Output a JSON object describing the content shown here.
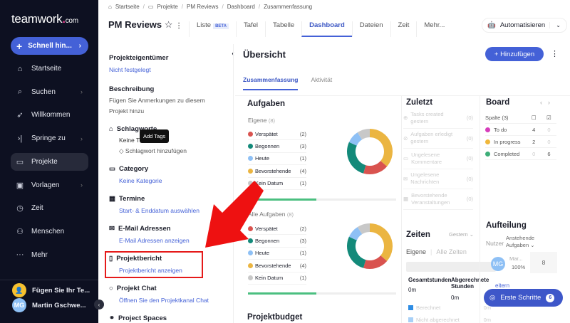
{
  "sidebar": {
    "logo": "teamwork",
    "logo_suffix": ".com",
    "quick_add": "Schnell hin...",
    "items": [
      {
        "label": "Startseite",
        "icon": "home-icon"
      },
      {
        "label": "Suchen",
        "icon": "search-icon",
        "chevron": true
      },
      {
        "label": "Willkommen",
        "icon": "rocket-icon"
      },
      {
        "label": "Springe zu",
        "icon": "jump-icon",
        "chevron": true
      },
      {
        "label": "Projekte",
        "icon": "folder-icon",
        "active": true
      },
      {
        "label": "Vorlagen",
        "icon": "templates-icon",
        "chevron": true
      },
      {
        "label": "Zeit",
        "icon": "timer-icon"
      },
      {
        "label": "Menschen",
        "icon": "people-icon"
      },
      {
        "label": "Mehr",
        "icon": "more-icon"
      }
    ],
    "add_team": "Fügen Sie Ihr Te...",
    "user_initials": "MG",
    "user_name": "Martin Gschwe..."
  },
  "breadcrumb": [
    "Startseite",
    "Projekte",
    "PM Reviews",
    "Dashboard",
    "Zusammenfassung"
  ],
  "project": {
    "title": "PM Reviews"
  },
  "tabs": {
    "liste": "Liste",
    "beta": "BETA",
    "items": [
      "Tafel",
      "Tabelle",
      "Dashboard",
      "Dateien",
      "Zeit",
      "Mehr..."
    ],
    "active": "Dashboard"
  },
  "automate": "Automatisieren",
  "left_panel": {
    "owner_h": "Projekteigentümer",
    "owner_v": "Nicht festgelegt",
    "desc_h": "Beschreibung",
    "desc_v1": "Fügen Sie Anmerkungen zu diesem",
    "desc_v2": "Projekt hinzu",
    "tags_h": "Schlagworte",
    "tags_none": "Keine T",
    "tags_add": "Schlagwort hinzufügen",
    "tooltip": "Add Tags",
    "cat_h": "Category",
    "cat_v": "Keine Kategorie",
    "dates_h": "Termine",
    "dates_v": "Start- & Enddatum auswählen",
    "email_h": "E-Mail Adressen",
    "email_v": "E-Mail Adressen anzeigen",
    "report_h": "Projektbericht",
    "report_v": "Projektbericht anzeigen",
    "chat_h": "Projekt Chat",
    "chat_v": "Öffnen Sie den Projektkanal Chat",
    "spaces_h": "Project Spaces"
  },
  "overview": {
    "title": "Übersicht",
    "add": "Hinzufügen",
    "subtabs": [
      "Zusammenfassung",
      "Aktivität"
    ]
  },
  "tasks": {
    "title": "Aufgaben",
    "mine": "Eigene",
    "mine_count": "(8)",
    "all": "Alle Aufgaben",
    "all_count": "(8)",
    "progress_percent": 46,
    "legend": [
      {
        "label": "Verspätet",
        "count": "(2)",
        "value": 2,
        "color": "#d9534f"
      },
      {
        "label": "Begonnen",
        "count": "(3)",
        "value": 3,
        "color": "#138a7a"
      },
      {
        "label": "Heute",
        "count": "(1)",
        "value": 1,
        "color": "#8ec0f5"
      },
      {
        "label": "Bevorstehende",
        "count": "(4)",
        "value": 4,
        "color": "#ebb541"
      },
      {
        "label": "Kein Datum",
        "count": "(1)",
        "value": 1,
        "color": "#c8c8c8"
      }
    ]
  },
  "recent": {
    "title": "Zuletzt",
    "items": [
      {
        "label": "Tasks created gestern",
        "count": "(0)"
      },
      {
        "label": "Aufgaben erledigt gestern",
        "count": "(0)"
      },
      {
        "label": "Ungelesene Kommentare",
        "count": "(0)"
      },
      {
        "label": "Ungelesene Nachrichten",
        "count": "(0)"
      },
      {
        "label": "Bevorstehende Veranstaltungen",
        "count": "(0)"
      }
    ]
  },
  "board": {
    "title": "Board",
    "col": "Spalte (3)",
    "rows": [
      {
        "name": "To do",
        "color": "#d63dbb",
        "open": "4",
        "done": "0"
      },
      {
        "name": "In progress",
        "color": "#f0b73a",
        "open": "2",
        "done": "0"
      },
      {
        "name": "Completed",
        "color": "#3dae78",
        "open": "0",
        "done": "6"
      }
    ]
  },
  "split": {
    "title": "Aufteilung",
    "user_h": "Nutzer",
    "pending_h": "Anstehende Aufgaben",
    "user": "Mar...",
    "initials": "MG",
    "pct": "100%",
    "count": "8",
    "more": "eitern"
  },
  "times": {
    "title": "Zeiten",
    "range": "Gestern",
    "mine": "Eigene",
    "all": "Alle Zeiten",
    "total_h": "Gesamtstunden",
    "total_v": "0m",
    "billed_h": "Abgerechnete Stunden",
    "billed_v": "0m",
    "rows": [
      {
        "label": "Berechnet",
        "v": "0m",
        "color": "#2f8de4"
      },
      {
        "label": "Nicht abgerechnet",
        "v": "0m",
        "color": "#a8d0f7"
      }
    ]
  },
  "budget": {
    "title": "Projektbudget"
  },
  "getting_started": {
    "label": "Erste Schritte",
    "count": "6"
  }
}
